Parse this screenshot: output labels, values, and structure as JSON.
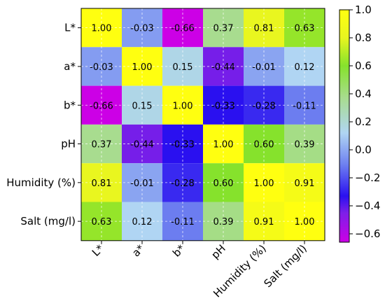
{
  "chart_data": {
    "type": "heatmap",
    "title": "",
    "xlabel": "",
    "ylabel": "",
    "rows": [
      "L*",
      "a*",
      "b*",
      "pH",
      "Humidity (%)",
      "Salt (mg/l)"
    ],
    "columns": [
      "L*",
      "a*",
      "b*",
      "pH",
      "Humidity (%)",
      "Salt (mg/l)"
    ],
    "values": [
      [
        1.0,
        -0.03,
        -0.66,
        0.37,
        0.81,
        0.63
      ],
      [
        -0.03,
        1.0,
        0.15,
        -0.44,
        -0.01,
        0.12
      ],
      [
        -0.66,
        0.15,
        1.0,
        -0.33,
        -0.28,
        -0.11
      ],
      [
        0.37,
        -0.44,
        -0.33,
        1.0,
        0.6,
        0.39
      ],
      [
        0.81,
        -0.01,
        -0.28,
        0.6,
        1.0,
        0.91
      ],
      [
        0.63,
        0.12,
        -0.11,
        0.39,
        0.91,
        1.0
      ]
    ],
    "cell_labels": [
      [
        "1.00",
        "-0.03",
        "-0.66",
        "0.37",
        "0.81",
        "0.63"
      ],
      [
        "-0.03",
        "1.00",
        "0.15",
        "-0.44",
        "-0.01",
        "0.12"
      ],
      [
        "-0.66",
        "0.15",
        "1.00",
        "-0.33",
        "-0.28",
        "-0.11"
      ],
      [
        "0.37",
        "-0.44",
        "-0.33",
        "1.00",
        "0.60",
        "0.39"
      ],
      [
        "0.81",
        "-0.01",
        "-0.28",
        "0.60",
        "1.00",
        "0.91"
      ],
      [
        "0.63",
        "0.12",
        "-0.11",
        "0.39",
        "0.91",
        "1.00"
      ]
    ],
    "colorbar": {
      "range": [
        -0.66,
        1.0
      ],
      "ticks": [
        1.0,
        0.8,
        0.6,
        0.4,
        0.2,
        0.0,
        -0.2,
        -0.4,
        -0.6
      ],
      "tick_labels": [
        "1.0",
        "0.8",
        "0.6",
        "0.4",
        "0.2",
        "0.0",
        "−0.2",
        "−0.4",
        "−0.6"
      ],
      "colormap_stops": [
        {
          "value": -0.66,
          "color": "#cc00e6"
        },
        {
          "value": -0.45,
          "color": "#7d1fe8"
        },
        {
          "value": -0.33,
          "color": "#2a10f0"
        },
        {
          "value": -0.1,
          "color": "#6f82f0"
        },
        {
          "value": 0.12,
          "color": "#b0d5f3"
        },
        {
          "value": 0.37,
          "color": "#a8dc8f"
        },
        {
          "value": 0.6,
          "color": "#86e22c"
        },
        {
          "value": 0.8,
          "color": "#e8f520"
        },
        {
          "value": 1.0,
          "color": "#ffff10"
        }
      ]
    },
    "grid": true,
    "legend": "colorbar-right"
  }
}
